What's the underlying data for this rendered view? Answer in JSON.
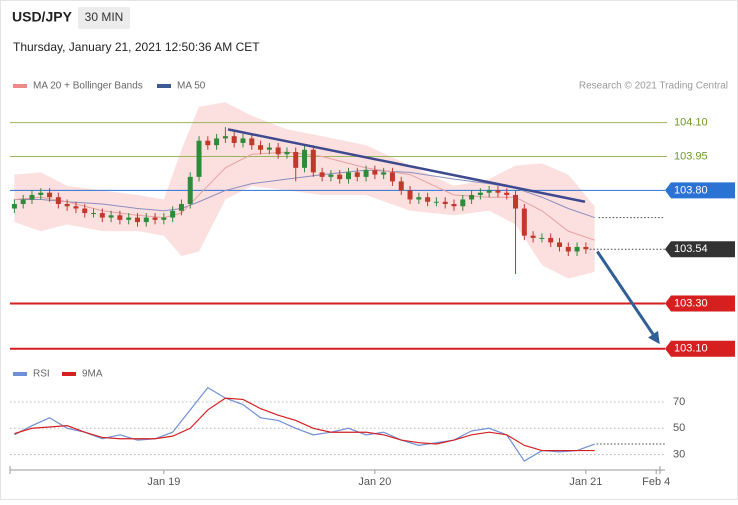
{
  "header": {
    "symbol": "USD/JPY",
    "timeframe": "30 MIN",
    "datetime": "Thursday, January 21, 2021 12:50:36 AM CET"
  },
  "chart_data": [
    {
      "type": "candlestick",
      "legend": [
        {
          "name": "MA 20 + Bollinger Bands",
          "color": "#f08a8a"
        },
        {
          "name": "MA 50",
          "color": "#3d5a94"
        }
      ],
      "source": "Research © 2021 Trading Central",
      "xlim": [
        -0.5,
        74
      ],
      "ylim": [
        103.05,
        104.2
      ],
      "up_color": "#2e8b3a",
      "down_color": "#c0392b",
      "x": [
        0,
        1,
        2,
        3,
        4,
        5,
        6,
        7,
        8,
        9,
        10,
        11,
        12,
        13,
        14,
        15,
        16,
        17,
        18,
        19,
        20,
        21,
        22,
        23,
        24,
        25,
        26,
        27,
        28,
        29,
        30,
        31,
        32,
        33,
        34,
        35,
        36,
        37,
        38,
        39,
        40,
        41,
        42,
        43,
        44,
        45,
        46,
        47,
        48,
        49,
        50,
        51,
        52,
        53,
        54,
        55,
        56,
        57,
        58,
        59,
        60,
        61,
        62,
        63,
        64,
        65
      ],
      "open": [
        103.72,
        103.74,
        103.76,
        103.78,
        103.79,
        103.77,
        103.74,
        103.73,
        103.72,
        103.7,
        103.7,
        103.68,
        103.69,
        103.67,
        103.68,
        103.66,
        103.68,
        103.67,
        103.68,
        103.71,
        103.74,
        103.86,
        104.02,
        104.0,
        104.03,
        104.04,
        104.01,
        104.03,
        104.0,
        103.98,
        103.99,
        103.96,
        103.97,
        103.9,
        103.98,
        103.88,
        103.86,
        103.87,
        103.85,
        103.88,
        103.86,
        103.89,
        103.87,
        103.88,
        103.84,
        103.8,
        103.76,
        103.77,
        103.75,
        103.75,
        103.74,
        103.73,
        103.76,
        103.78,
        103.79,
        103.8,
        103.79,
        103.78,
        103.72,
        103.6,
        103.59,
        103.59,
        103.57,
        103.55,
        103.53,
        103.55
      ],
      "high": [
        103.76,
        103.78,
        103.8,
        103.81,
        103.81,
        103.79,
        103.76,
        103.75,
        103.74,
        103.72,
        103.72,
        103.71,
        103.71,
        103.7,
        103.7,
        103.7,
        103.7,
        103.7,
        103.73,
        103.76,
        103.88,
        104.04,
        104.04,
        104.05,
        104.08,
        104.06,
        104.05,
        104.05,
        104.02,
        104.01,
        104.01,
        103.99,
        103.99,
        104.0,
        104.0,
        103.9,
        103.89,
        103.89,
        103.9,
        103.9,
        103.91,
        103.91,
        103.9,
        103.9,
        103.86,
        103.82,
        103.79,
        103.79,
        103.77,
        103.77,
        103.76,
        103.78,
        103.8,
        103.81,
        103.82,
        103.82,
        103.81,
        103.8,
        103.74,
        103.62,
        103.61,
        103.61,
        103.59,
        103.57,
        103.57,
        103.57
      ],
      "low": [
        103.7,
        103.72,
        103.74,
        103.76,
        103.75,
        103.72,
        103.71,
        103.7,
        103.68,
        103.68,
        103.66,
        103.66,
        103.65,
        103.65,
        103.64,
        103.64,
        103.65,
        103.65,
        103.66,
        103.69,
        103.72,
        103.84,
        103.98,
        103.98,
        104.01,
        103.99,
        103.99,
        103.98,
        103.96,
        103.96,
        103.94,
        103.94,
        103.84,
        103.88,
        103.86,
        103.84,
        103.84,
        103.83,
        103.83,
        103.84,
        103.84,
        103.85,
        103.85,
        103.82,
        103.78,
        103.74,
        103.74,
        103.73,
        103.73,
        103.72,
        103.71,
        103.71,
        103.74,
        103.76,
        103.77,
        103.77,
        103.76,
        103.43,
        103.58,
        103.57,
        103.57,
        103.55,
        103.53,
        103.51,
        103.51,
        103.52
      ],
      "close": [
        103.74,
        103.76,
        103.78,
        103.79,
        103.77,
        103.74,
        103.73,
        103.72,
        103.7,
        103.7,
        103.68,
        103.69,
        103.67,
        103.68,
        103.66,
        103.68,
        103.67,
        103.68,
        103.71,
        103.74,
        103.86,
        104.02,
        104.0,
        104.03,
        104.04,
        104.01,
        104.03,
        104.0,
        103.98,
        103.99,
        103.96,
        103.97,
        103.9,
        103.98,
        103.88,
        103.86,
        103.87,
        103.85,
        103.88,
        103.86,
        103.89,
        103.87,
        103.88,
        103.84,
        103.8,
        103.76,
        103.77,
        103.75,
        103.75,
        103.74,
        103.73,
        103.76,
        103.78,
        103.79,
        103.8,
        103.79,
        103.78,
        103.72,
        103.6,
        103.59,
        103.59,
        103.57,
        103.55,
        103.53,
        103.55,
        103.54
      ],
      "overlay_x": [
        0,
        3,
        6,
        10,
        14,
        17,
        19,
        21,
        24,
        27,
        31,
        35,
        40,
        45,
        50,
        54,
        57,
        60,
        63,
        66
      ],
      "band_upper": [
        103.87,
        103.88,
        103.82,
        103.8,
        103.78,
        103.76,
        103.98,
        104.17,
        104.19,
        104.13,
        104.07,
        104.04,
        104.0,
        103.91,
        103.82,
        103.85,
        103.91,
        103.92,
        103.87,
        103.73
      ],
      "band_lower": [
        103.66,
        103.62,
        103.65,
        103.62,
        103.62,
        103.6,
        103.51,
        103.53,
        103.76,
        103.82,
        103.8,
        103.78,
        103.78,
        103.71,
        103.69,
        103.71,
        103.65,
        103.47,
        103.41,
        103.44
      ],
      "ma20": [
        103.76,
        103.77,
        103.75,
        103.71,
        103.69,
        103.68,
        103.7,
        103.78,
        103.9,
        103.96,
        103.97,
        103.95,
        103.9,
        103.87,
        103.78,
        103.77,
        103.77,
        103.71,
        103.62,
        103.58
      ],
      "ma50": [
        103.76,
        103.76,
        103.75,
        103.74,
        103.72,
        103.71,
        103.72,
        103.75,
        103.8,
        103.83,
        103.85,
        103.87,
        103.89,
        103.88,
        103.85,
        103.83,
        103.81,
        103.77,
        103.72,
        103.68
      ],
      "trendline": {
        "x": [
          24.3,
          64.9
        ],
        "y": [
          104.07,
          103.75
        ],
        "color": "#3d4a8f"
      },
      "forecast_arrow": {
        "x": [
          66.3,
          73.4
        ],
        "y": [
          103.53,
          103.12
        ],
        "color": "#2f5f96"
      },
      "levels": [
        {
          "value": 104.1,
          "label": "104.10",
          "color": "#9bb45a",
          "text_color": "#6e9a2a",
          "boxed": false,
          "line": "thin"
        },
        {
          "value": 103.95,
          "label": "103.95",
          "color": "#9bb45a",
          "text_color": "#6e9a2a",
          "boxed": false,
          "line": "thin"
        },
        {
          "value": 103.8,
          "label": "103.80",
          "color": "#2a72d4",
          "text_color": "#ffffff",
          "boxed": true,
          "line": "thin"
        },
        {
          "value": 103.54,
          "label": "103.54",
          "color": "#333333",
          "text_color": "#ffffff",
          "boxed": true,
          "line": "dotted"
        },
        {
          "value": 103.3,
          "label": "103.30",
          "color": "#d61f1f",
          "text_color": "#ffffff",
          "boxed": true,
          "line": "thick"
        },
        {
          "value": 103.1,
          "label": "103.10",
          "color": "#d61f1f",
          "text_color": "#ffffff",
          "boxed": true,
          "line": "thick"
        }
      ]
    },
    {
      "type": "line",
      "xlim": [
        -0.5,
        74
      ],
      "ylim": [
        22,
        83
      ],
      "yticks": [
        30,
        50,
        70
      ],
      "grid": true,
      "xticks": [
        {
          "value": 17,
          "label": "Jan 19"
        },
        {
          "value": 41,
          "label": "Jan 20"
        },
        {
          "value": 65,
          "label": "Jan 21"
        },
        {
          "value": 73,
          "label": "Feb 4"
        }
      ],
      "x": [
        0,
        2,
        4,
        6,
        8,
        10,
        12,
        14,
        16,
        18,
        20,
        22,
        24,
        26,
        28,
        30,
        32,
        34,
        36,
        38,
        40,
        42,
        44,
        46,
        48,
        50,
        52,
        54,
        56,
        58,
        60,
        62,
        64,
        66
      ],
      "series": [
        {
          "name": "RSI",
          "color": "#6f8fd6",
          "values": [
            45,
            52,
            58,
            50,
            47,
            42,
            45,
            41,
            42,
            47,
            64,
            81,
            73,
            68,
            58,
            56,
            50,
            45,
            47,
            50,
            45,
            47,
            41,
            37,
            39,
            41,
            48,
            50,
            45,
            25,
            33,
            32,
            33,
            38
          ]
        },
        {
          "name": "9MA",
          "color": "#d42020",
          "values": [
            46,
            50,
            51,
            52,
            47,
            43,
            42,
            42,
            42,
            44,
            50,
            64,
            73,
            72,
            65,
            60,
            56,
            50,
            47,
            47,
            47,
            45,
            41,
            39,
            38,
            41,
            45,
            47,
            45,
            37,
            33,
            33,
            33,
            33
          ]
        }
      ]
    }
  ]
}
